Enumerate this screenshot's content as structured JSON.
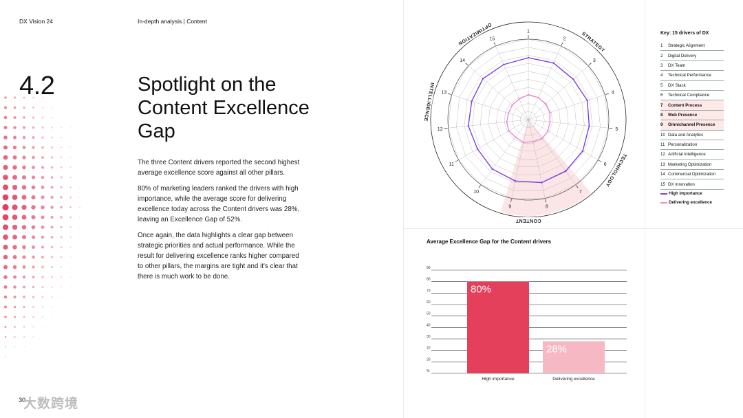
{
  "header": {
    "brand": "DX Vision 24",
    "section": "In-depth analysis | Content"
  },
  "left": {
    "section_number": "4.2",
    "title": "Spotlight on the Content Excellence Gap",
    "paragraphs": [
      "The three Content drivers reported the second highest average excellence score against all other pillars.",
      "80% of marketing leaders ranked the drivers with high importance, while the average score for delivering excellence today across the Content drivers was 28%, leaving an Excellence Gap of 52%.",
      "Once again, the data highlights a clear gap between strategic priorities and actual performance. While the result for delivering excellence ranks higher compared to other pillars, the margins are tight and it's clear that there is much work to be done."
    ],
    "page_number": "30",
    "watermark": "大数跨境"
  },
  "colors": {
    "accent": "#e4405c",
    "accent_light": "#f6b9c3",
    "purple": "#7b3fe0",
    "pink": "#e98ad6",
    "highlight_bg": "#fde9e8"
  },
  "radar": {
    "pillar_labels": [
      "STRATEGY",
      "TECHNOLOGY",
      "CONTENT",
      "INTELLIGENCE",
      "OPTIMIZATION"
    ],
    "spoke_labels": [
      "1",
      "2",
      "3",
      "4",
      "5",
      "6",
      "7",
      "8",
      "9",
      "10",
      "11",
      "12",
      "13",
      "14",
      "15"
    ],
    "rmax": 100,
    "high_importance": [
      77,
      77,
      75,
      77,
      76,
      78,
      79,
      80,
      78,
      76,
      73,
      75,
      74,
      76,
      75
    ],
    "delivering_excellence": [
      31,
      30,
      29,
      28,
      27,
      28,
      29,
      28,
      29,
      27,
      28,
      27,
      26,
      27,
      28
    ],
    "highlighted_sector": [
      "7",
      "9"
    ]
  },
  "key": {
    "title": "Key: 15 drivers of DX",
    "items": [
      {
        "n": "1",
        "label": "Strategic Alignment",
        "highlight": false
      },
      {
        "n": "2",
        "label": "Digital Delivery",
        "highlight": false
      },
      {
        "n": "3",
        "label": "DX Team",
        "highlight": false
      },
      {
        "n": "4",
        "label": "Technical Performance",
        "highlight": false
      },
      {
        "n": "5",
        "label": "DX Stack",
        "highlight": false
      },
      {
        "n": "6",
        "label": "Technical Compliance",
        "highlight": false
      },
      {
        "n": "7",
        "label": "Content Process",
        "highlight": true
      },
      {
        "n": "8",
        "label": "Web Presence",
        "highlight": true
      },
      {
        "n": "9",
        "label": "Omnichannel Presence",
        "highlight": true
      },
      {
        "n": "10",
        "label": "Data and Analytics",
        "highlight": false
      },
      {
        "n": "11",
        "label": "Personalization",
        "highlight": false
      },
      {
        "n": "12",
        "label": "Artificial Intelligence",
        "highlight": false
      },
      {
        "n": "13",
        "label": "Marketing Optimization",
        "highlight": false
      },
      {
        "n": "14",
        "label": "Commercial Optimization",
        "highlight": false
      },
      {
        "n": "15",
        "label": "DX Innovation",
        "highlight": false
      }
    ],
    "legend": [
      {
        "label": "High importance",
        "color": "#7b3fe0"
      },
      {
        "label": "Delivering excellence",
        "color": "#e98ad6"
      }
    ]
  },
  "chart_data": {
    "type": "bar",
    "title": "Average Excellence Gap for the Content drivers",
    "categories": [
      "High importance",
      "Delivering excellence"
    ],
    "values": [
      80,
      28
    ],
    "value_labels": [
      "80%",
      "28%"
    ],
    "colors": [
      "#e4405c",
      "#f6b9c3"
    ],
    "yticks": [
      "90",
      "80",
      "70",
      "60",
      "50",
      "40",
      "30",
      "10",
      "20",
      "%"
    ],
    "ylim": [
      0,
      90
    ],
    "grid": true
  }
}
